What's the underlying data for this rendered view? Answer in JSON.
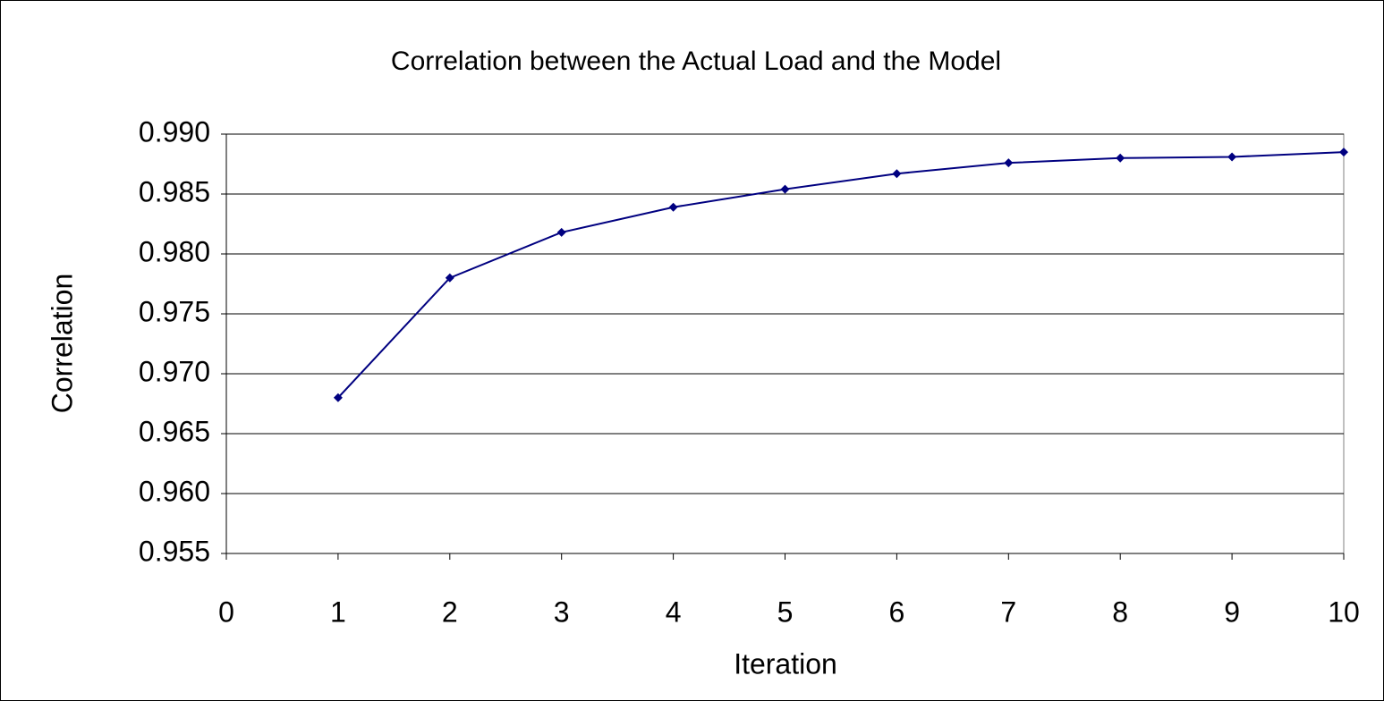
{
  "chart_data": {
    "type": "line",
    "title": "Correlation between the Actual Load and the Model",
    "x_label": "Iteration",
    "y_label": "Correlation",
    "x": [
      1,
      2,
      3,
      4,
      5,
      6,
      7,
      8,
      9,
      10
    ],
    "series": [
      {
        "name": "Correlation",
        "color": "#000080",
        "values": [
          0.968,
          0.978,
          0.9818,
          0.9839,
          0.9854,
          0.9867,
          0.9876,
          0.988,
          0.9881,
          0.9885
        ]
      }
    ],
    "xlim": [
      0,
      10
    ],
    "xticks": [
      0,
      1,
      2,
      3,
      4,
      5,
      6,
      7,
      8,
      9,
      10
    ],
    "ylim": [
      0.955,
      0.99
    ],
    "yticks": [
      {
        "value": 0.955,
        "label": "0.955"
      },
      {
        "value": 0.96,
        "label": "0.960"
      },
      {
        "value": 0.965,
        "label": "0.965"
      },
      {
        "value": 0.97,
        "label": "0.970"
      },
      {
        "value": 0.975,
        "label": "0.975"
      },
      {
        "value": 0.98,
        "label": "0.980"
      },
      {
        "value": 0.985,
        "label": "0.985"
      },
      {
        "value": 0.99,
        "label": "0.990"
      }
    ],
    "grid": true
  }
}
